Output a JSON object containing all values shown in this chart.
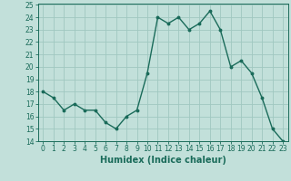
{
  "x": [
    0,
    1,
    2,
    3,
    4,
    5,
    6,
    7,
    8,
    9,
    10,
    11,
    12,
    13,
    14,
    15,
    16,
    17,
    18,
    19,
    20,
    21,
    22,
    23
  ],
  "y": [
    18,
    17.5,
    16.5,
    17,
    16.5,
    16.5,
    15.5,
    15,
    16,
    16.5,
    19.5,
    24,
    23.5,
    24,
    23,
    23.5,
    24.5,
    23,
    20,
    20.5,
    19.5,
    17.5,
    15,
    14
  ],
  "line_color": "#1a6b5a",
  "bg_color": "#c2e0da",
  "grid_color": "#a0c8c0",
  "xlabel": "Humidex (Indice chaleur)",
  "ylim": [
    14,
    25
  ],
  "xlim_min": -0.5,
  "xlim_max": 23.5,
  "yticks": [
    14,
    15,
    16,
    17,
    18,
    19,
    20,
    21,
    22,
    23,
    24,
    25
  ],
  "xticks": [
    0,
    1,
    2,
    3,
    4,
    5,
    6,
    7,
    8,
    9,
    10,
    11,
    12,
    13,
    14,
    15,
    16,
    17,
    18,
    19,
    20,
    21,
    22,
    23
  ],
  "tick_label_fontsize": 5.5,
  "xlabel_fontsize": 7,
  "marker": "o",
  "marker_size": 1.8,
  "line_width": 1.0
}
